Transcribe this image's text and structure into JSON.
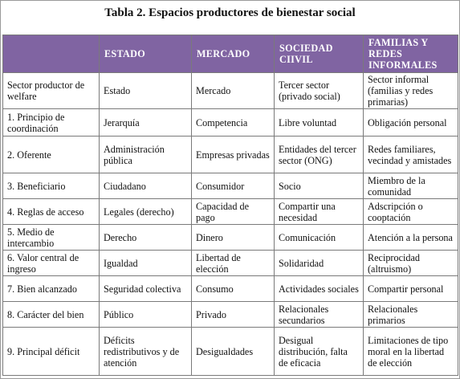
{
  "title": "Tabla 2. Espacios productores de bienestar social",
  "table": {
    "headers": [
      "",
      "ESTADO",
      "MERCADO",
      "SOCIEDAD CIIVIL",
      "FAMILIAS Y REDES INFORMALES"
    ],
    "rows": [
      [
        "Sector productor de welfare",
        "Estado",
        "Mercado",
        "Tercer sector (privado social)",
        "Sector informal (familias y redes primarias)"
      ],
      [
        "1. Principio de coordinación",
        "Jerarquía",
        "Competencia",
        "Libre voluntad",
        "Obligación personal"
      ],
      [
        "2. Oferente",
        "Administración pública",
        "Empresas privadas",
        "Entidades del tercer sector (ONG)",
        "Redes familiares, vecindad y amistades"
      ],
      [
        "3. Beneficiario",
        "Ciudadano",
        "Consumidor",
        "Socio",
        "Miembro de la comunidad"
      ],
      [
        "4. Reglas de acceso",
        "Legales (derecho)",
        "Capacidad de pago",
        "Compartir una necesidad",
        "Adscripción o cooptación"
      ],
      [
        "5. Medio de intercambio",
        "Derecho",
        "Dinero",
        "Comunicación",
        "Atención a la persona"
      ],
      [
        "6. Valor central de ingreso",
        "Igualdad",
        "Libertad de elección",
        "Solidaridad",
        "Reciprocidad (altruismo)"
      ],
      [
        "7. Bien alcanzado",
        "Seguridad colectiva",
        "Consumo",
        "Actividades sociales",
        "Compartir personal"
      ],
      [
        "8. Carácter del bien",
        "Público",
        "Privado",
        "Relacionales secundarios",
        "Relacionales primarios"
      ],
      [
        "9. Principal déficit",
        "Déficits redistributivos y de atención",
        "Desigualdades",
        "Desigual distribución, falta de eficacia",
        "Limitaciones de tipo moral en la libertad de elección"
      ]
    ]
  },
  "colors": {
    "header_bg": "#8064a2",
    "header_text": "#ffffff",
    "border": "#7a7a7a"
  }
}
